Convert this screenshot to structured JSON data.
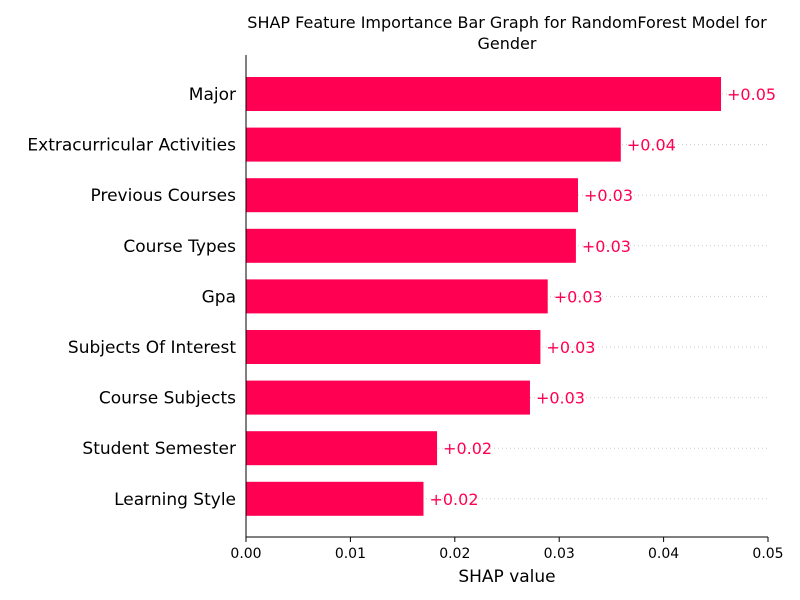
{
  "chart_data": {
    "type": "bar",
    "orientation": "horizontal",
    "title_lines": [
      "SHAP Feature Importance Bar Graph for RandomForest Model for",
      "Gender"
    ],
    "xlabel": "SHAP value",
    "ylabel": "",
    "xlim": [
      0,
      0.05
    ],
    "xticks": [
      "0.00",
      "0.01",
      "0.02",
      "0.03",
      "0.04",
      "0.05"
    ],
    "categories": [
      "Major",
      "Extracurricular Activities",
      "Previous Courses",
      "Course Types",
      "Gpa",
      "Subjects Of Interest",
      "Course Subjects",
      "Student Semester",
      "Learning Style"
    ],
    "values": [
      0.0455,
      0.0359,
      0.0318,
      0.0316,
      0.0289,
      0.0282,
      0.0272,
      0.0183,
      0.017
    ],
    "value_labels": [
      "+0.05",
      "+0.04",
      "+0.03",
      "+0.03",
      "+0.03",
      "+0.03",
      "+0.03",
      "+0.02",
      "+0.02"
    ],
    "bar_color": "#ff0052",
    "label_color": "#ff0052",
    "grid": "dotted guide lines per row",
    "legend": "none"
  }
}
